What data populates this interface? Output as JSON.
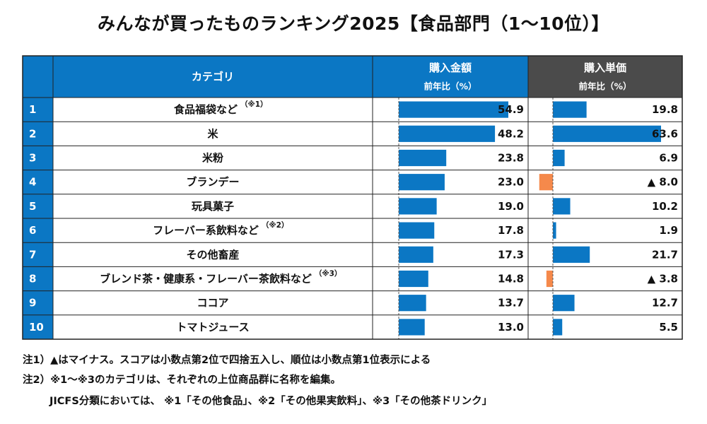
{
  "title": "みんなが買ったものランキング2025【食品部門（1〜10位）】",
  "header": {
    "category": "カテゴリ",
    "amount": "購入金額",
    "amount_sub": "前年比（%）",
    "unit": "購入単価",
    "unit_sub": "前年比（%）"
  },
  "colors": {
    "header_blue": "#0b77c4",
    "header_gray": "#4b4b4b",
    "bar_blue": "#0b77c4",
    "bar_orange": "#f5894b",
    "rank_cell": "#0b77c4"
  },
  "chart_data": {
    "type": "table",
    "columns": [
      "購入金額 前年比（%）",
      "購入単価 前年比（%）"
    ],
    "rows": [
      {
        "rank": "1",
        "category": "食品福袋など",
        "note": "（※1）",
        "amount": 54.9,
        "amount_label": "54.9",
        "unit": 19.8,
        "unit_label": "19.8"
      },
      {
        "rank": "2",
        "category": "米",
        "note": "",
        "amount": 48.2,
        "amount_label": "48.2",
        "unit": 63.6,
        "unit_label": "63.6"
      },
      {
        "rank": "3",
        "category": "米粉",
        "note": "",
        "amount": 23.8,
        "amount_label": "23.8",
        "unit": 6.9,
        "unit_label": "6.9"
      },
      {
        "rank": "4",
        "category": "ブランデー",
        "note": "",
        "amount": 23.0,
        "amount_label": "23.0",
        "unit": -8.0,
        "unit_label": "▲ 8.0"
      },
      {
        "rank": "5",
        "category": "玩具菓子",
        "note": "",
        "amount": 19.0,
        "amount_label": "19.0",
        "unit": 10.2,
        "unit_label": "10.2"
      },
      {
        "rank": "6",
        "category": "フレーバー系飲料など",
        "note": "（※2）",
        "amount": 17.8,
        "amount_label": "17.8",
        "unit": 1.9,
        "unit_label": "1.9"
      },
      {
        "rank": "7",
        "category": "その他畜産",
        "note": "",
        "amount": 17.3,
        "amount_label": "17.3",
        "unit": 21.7,
        "unit_label": "21.7"
      },
      {
        "rank": "8",
        "category": "ブレンド茶・健康系・フレーバー茶飲料など",
        "note": "（※3）",
        "amount": 14.8,
        "amount_label": "14.8",
        "unit": -3.8,
        "unit_label": "▲ 3.8"
      },
      {
        "rank": "9",
        "category": "ココア",
        "note": "",
        "amount": 13.7,
        "amount_label": "13.7",
        "unit": 12.7,
        "unit_label": "12.7"
      },
      {
        "rank": "10",
        "category": "トマトジュース",
        "note": "",
        "amount": 13.0,
        "amount_label": "13.0",
        "unit": 5.5,
        "unit_label": "5.5"
      }
    ],
    "amount_range": [
      0,
      54.9
    ],
    "unit_range": [
      -8.0,
      63.6
    ],
    "negative_marker": "▲"
  },
  "notes": [
    "注1）▲はマイナス。スコアは小数点第2位で四捨五入し、順位は小数点第1位表示による",
    "注2）※1〜※3のカテゴリは、それぞれの上位商品群に名称を編集。",
    "JICFS分類においては、 ※1「その他食品」、※2「その他果実飲料」、※3「その他茶ドリンク」"
  ]
}
